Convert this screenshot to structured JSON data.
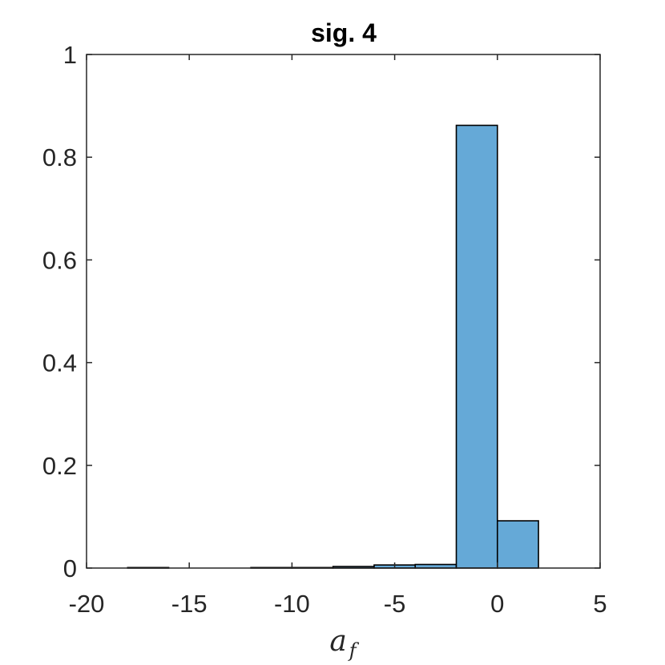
{
  "chart_data": {
    "type": "bar",
    "title": "sig. 4",
    "xlabel": "a",
    "xlabel_subscript": "f",
    "ylabel": "",
    "xlim": [
      -20,
      5
    ],
    "ylim": [
      0,
      1
    ],
    "xticks": [
      "-20",
      "-15",
      "-10",
      "-5",
      "0",
      "5"
    ],
    "yticks": [
      "0",
      "0.2",
      "0.4",
      "0.6",
      "0.8",
      "1"
    ],
    "bin_edges": [
      -20,
      -18,
      -16,
      -14,
      -12,
      -10,
      -8,
      -6,
      -4,
      -2,
      0,
      2,
      4,
      6
    ],
    "values": [
      0,
      0.001,
      0,
      0,
      0.001,
      0.001,
      0.003,
      0.006,
      0.007,
      0.862,
      0.092,
      0,
      0
    ],
    "bar_color": "#65a9d7",
    "grid": false,
    "box": true
  }
}
